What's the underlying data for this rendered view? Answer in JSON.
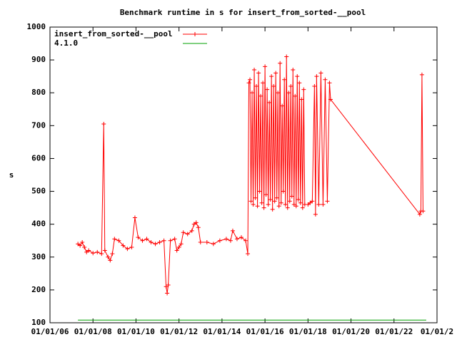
{
  "chart_data": {
    "type": "line",
    "title": "Benchmark runtime in s for insert_from_sorted-__pool",
    "y_label": "s",
    "xlim": [
      2006,
      2024
    ],
    "ylim": [
      100,
      1000
    ],
    "xticks": [
      {
        "value": 2006,
        "label": "01/01/06"
      },
      {
        "value": 2008,
        "label": "01/01/08"
      },
      {
        "value": 2010,
        "label": "01/01/10"
      },
      {
        "value": 2012,
        "label": "01/01/12"
      },
      {
        "value": 2014,
        "label": "01/01/14"
      },
      {
        "value": 2016,
        "label": "01/01/16"
      },
      {
        "value": 2018,
        "label": "01/01/18"
      },
      {
        "value": 2020,
        "label": "01/01/20"
      },
      {
        "value": 2022,
        "label": "01/01/22"
      },
      {
        "value": 2024,
        "label": "01/01/2"
      }
    ],
    "yticks": [
      100,
      200,
      300,
      400,
      500,
      600,
      700,
      800,
      900,
      1000
    ],
    "legend": "top-left",
    "series": [
      {
        "name": "insert_from_sorted-__pool",
        "color": "#ff0000",
        "x": [
          2007.3,
          2007.4,
          2007.5,
          2007.6,
          2007.7,
          2007.8,
          2008.0,
          2008.2,
          2008.4,
          2008.5,
          2008.55,
          2008.7,
          2008.8,
          2008.9,
          2009.0,
          2009.2,
          2009.4,
          2009.6,
          2009.8,
          2009.95,
          2010.1,
          2010.3,
          2010.5,
          2010.7,
          2010.9,
          2011.1,
          2011.3,
          2011.4,
          2011.45,
          2011.5,
          2011.6,
          2011.8,
          2011.9,
          2012.0,
          2012.1,
          2012.2,
          2012.4,
          2012.6,
          2012.7,
          2012.8,
          2012.9,
          2013.0,
          2013.3,
          2013.6,
          2013.9,
          2014.2,
          2014.4,
          2014.5,
          2014.7,
          2014.9,
          2015.1,
          2015.2,
          2015.25,
          2015.3,
          2015.35,
          2015.4,
          2015.45,
          2015.5,
          2015.55,
          2015.6,
          2015.65,
          2015.7,
          2015.75,
          2015.8,
          2015.85,
          2015.9,
          2015.95,
          2016.0,
          2016.05,
          2016.1,
          2016.15,
          2016.2,
          2016.25,
          2016.3,
          2016.35,
          2016.4,
          2016.45,
          2016.5,
          2016.55,
          2016.6,
          2016.65,
          2016.7,
          2016.75,
          2016.8,
          2016.85,
          2016.9,
          2016.95,
          2017.0,
          2017.05,
          2017.1,
          2017.15,
          2017.2,
          2017.25,
          2017.3,
          2017.35,
          2017.4,
          2017.45,
          2017.5,
          2017.55,
          2017.6,
          2017.65,
          2017.7,
          2017.75,
          2017.8,
          2017.85,
          2018.0,
          2018.1,
          2018.2,
          2018.3,
          2018.35,
          2018.4,
          2018.5,
          2018.6,
          2018.7,
          2018.8,
          2018.9,
          2019.0,
          2019.05,
          2023.2,
          2023.25,
          2023.3,
          2023.35
        ],
        "values": [
          340,
          335,
          345,
          330,
          315,
          320,
          312,
          315,
          310,
          705,
          320,
          300,
          290,
          310,
          355,
          350,
          335,
          325,
          330,
          420,
          360,
          350,
          355,
          345,
          340,
          345,
          350,
          210,
          190,
          215,
          350,
          355,
          320,
          330,
          340,
          375,
          370,
          380,
          400,
          405,
          390,
          345,
          345,
          340,
          350,
          355,
          350,
          380,
          355,
          360,
          350,
          310,
          830,
          840,
          470,
          800,
          460,
          870,
          480,
          820,
          455,
          860,
          500,
          790,
          465,
          830,
          450,
          880,
          490,
          810,
          460,
          770,
          475,
          850,
          445,
          820,
          470,
          860,
          480,
          800,
          455,
          890,
          465,
          760,
          500,
          840,
          460,
          910,
          450,
          800,
          470,
          820,
          485,
          870,
          460,
          790,
          455,
          850,
          475,
          830,
          465,
          780,
          450,
          810,
          460,
          460,
          465,
          470,
          820,
          430,
          850,
          460,
          860,
          460,
          840,
          470,
          830,
          780,
          430,
          440,
          855,
          440
        ]
      },
      {
        "name": "4.1.0",
        "color": "#00a000",
        "x": [
          2007.3,
          2023.5
        ],
        "values": [
          108,
          108
        ]
      }
    ]
  }
}
